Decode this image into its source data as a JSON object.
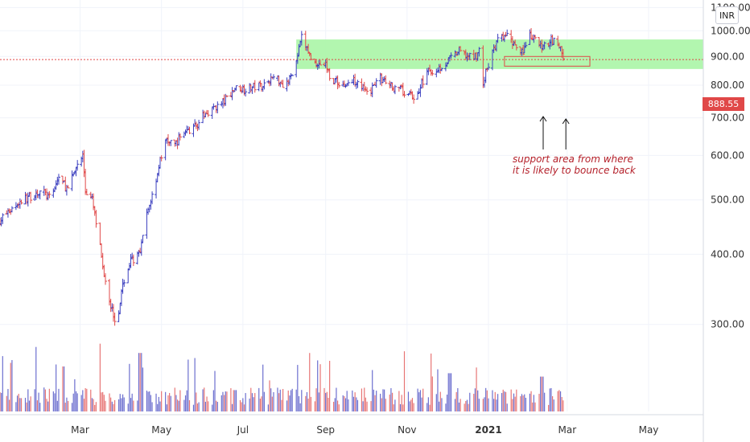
{
  "colors": {
    "up": "#3b3fbf",
    "down": "#e04848",
    "zone": "#aaf5a6",
    "price_line": "#e04848",
    "price_badge": "#e04848",
    "annotation": "#b4202a",
    "grid": "#f0f3fa",
    "axis_text": "#333333"
  },
  "currency_badge": "INR",
  "last_price_label": "888.55",
  "annotation": {
    "line1": "support area from where",
    "line2": "it is likely to bounce back"
  },
  "chart_data": {
    "type": "ohlc",
    "title": "",
    "xlabel": "",
    "ylabel": "",
    "y_scale": "log",
    "ylim": [
      210,
      1105
    ],
    "xlim": [
      "2020-01-01",
      "2021-06-11"
    ],
    "y_tick_labels": [
      "1100.00",
      "1000.00",
      "900.00",
      "800.00",
      "700.00",
      "600.00",
      "500.00",
      "400.00",
      "300.00"
    ],
    "x_tick_labels": [
      {
        "date": "2020-03-01",
        "label": "Mar",
        "bold": false
      },
      {
        "date": "2020-05-01",
        "label": "May",
        "bold": false
      },
      {
        "date": "2020-07-01",
        "label": "Jul",
        "bold": false
      },
      {
        "date": "2020-09-01",
        "label": "Sep",
        "bold": false
      },
      {
        "date": "2020-11-01",
        "label": "Nov",
        "bold": false
      },
      {
        "date": "2021-01-01",
        "label": "2021",
        "bold": true
      },
      {
        "date": "2021-03-01",
        "label": "Mar",
        "bold": false
      },
      {
        "date": "2021-05-01",
        "label": "May",
        "bold": false
      }
    ],
    "last_price": 888.55,
    "zones": [
      {
        "name": "resistance-support band",
        "low": 855,
        "high": 965,
        "start": "2020-08-10",
        "end": "2021-06-11"
      },
      {
        "name": "support area",
        "low": 865,
        "high": 900,
        "start": "2021-01-13",
        "end": "2021-03-18"
      }
    ],
    "close_path": [
      [
        "2020-01-01",
        460
      ],
      [
        "2020-01-15",
        495
      ],
      [
        "2020-02-01",
        520
      ],
      [
        "2020-02-08",
        500
      ],
      [
        "2020-02-14",
        550
      ],
      [
        "2020-02-21",
        520
      ],
      [
        "2020-02-28",
        580
      ],
      [
        "2020-03-03",
        600
      ],
      [
        "2020-03-05",
        520
      ],
      [
        "2020-03-10",
        500
      ],
      [
        "2020-03-14",
        440
      ],
      [
        "2020-03-18",
        380
      ],
      [
        "2020-03-24",
        325
      ],
      [
        "2020-03-28",
        300
      ],
      [
        "2020-04-03",
        360
      ],
      [
        "2020-04-08",
        390
      ],
      [
        "2020-04-15",
        400
      ],
      [
        "2020-04-20",
        470
      ],
      [
        "2020-04-25",
        520
      ],
      [
        "2020-05-01",
        600
      ],
      [
        "2020-05-05",
        640
      ],
      [
        "2020-05-10",
        620
      ],
      [
        "2020-05-17",
        660
      ],
      [
        "2020-05-25",
        670
      ],
      [
        "2020-06-05",
        720
      ],
      [
        "2020-06-15",
        740
      ],
      [
        "2020-06-25",
        790
      ],
      [
        "2020-07-05",
        790
      ],
      [
        "2020-07-15",
        800
      ],
      [
        "2020-07-25",
        830
      ],
      [
        "2020-08-01",
        800
      ],
      [
        "2020-08-05",
        820
      ],
      [
        "2020-08-10",
        880
      ],
      [
        "2020-08-14",
        970
      ],
      [
        "2020-08-18",
        930
      ],
      [
        "2020-08-22",
        880
      ],
      [
        "2020-09-01",
        870
      ],
      [
        "2020-09-05",
        820
      ],
      [
        "2020-09-15",
        800
      ],
      [
        "2020-09-25",
        820
      ],
      [
        "2020-10-03",
        760
      ],
      [
        "2020-10-10",
        830
      ],
      [
        "2020-10-18",
        800
      ],
      [
        "2020-10-25",
        790
      ],
      [
        "2020-11-01",
        770
      ],
      [
        "2020-11-08",
        760
      ],
      [
        "2020-11-15",
        840
      ],
      [
        "2020-11-22",
        850
      ],
      [
        "2020-12-01",
        880
      ],
      [
        "2020-12-10",
        920
      ],
      [
        "2020-12-20",
        890
      ],
      [
        "2020-12-25",
        920
      ],
      [
        "2020-12-28",
        810
      ],
      [
        "2021-01-03",
        900
      ],
      [
        "2021-01-08",
        960
      ],
      [
        "2021-01-14",
        980
      ],
      [
        "2021-01-20",
        950
      ],
      [
        "2021-01-27",
        920
      ],
      [
        "2021-02-01",
        975
      ],
      [
        "2021-02-06",
        960
      ],
      [
        "2021-02-11",
        930
      ],
      [
        "2021-02-17",
        970
      ],
      [
        "2021-02-23",
        940
      ],
      [
        "2021-02-27",
        888
      ]
    ],
    "volume_peaks": [
      {
        "date": "2020-02-17",
        "value": 400
      },
      {
        "date": "2020-03-15",
        "value": 250
      },
      {
        "date": "2020-04-15",
        "value": 520
      },
      {
        "date": "2020-06-25",
        "value": 190
      },
      {
        "date": "2020-12-03",
        "value": 340
      },
      {
        "date": "2021-02-10",
        "value": 310
      }
    ]
  }
}
